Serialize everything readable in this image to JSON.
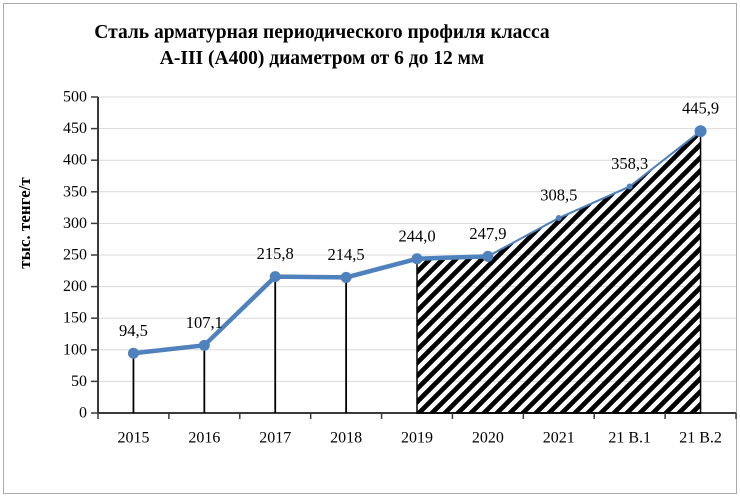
{
  "figure": {
    "title_line1": "Сталь арматурная периодического профиля класса",
    "title_line2": "А-III (А400) диаметром от 6 до 12 мм",
    "y_axis_title": "тыс. тенге/т"
  },
  "chart_data": {
    "type": "line",
    "title": "Сталь арматурная периодического профиля класса А-III (А400) диаметром от 6 до 12 мм",
    "ylabel": "тыс. тенге/т",
    "xlabel": "",
    "categories": [
      "2015",
      "2016",
      "2017",
      "2018",
      "2019",
      "2020",
      "2021",
      "21 В.1",
      "21 В.2"
    ],
    "values": [
      94.5,
      107.1,
      215.8,
      214.5,
      244.0,
      247.9,
      308.5,
      358.3,
      445.9
    ],
    "point_labels": [
      "94,5",
      "107,1",
      "215,8",
      "214,5",
      "244,0",
      "247,9",
      "308,5",
      "358,3",
      "445,9"
    ],
    "ylim": [
      0,
      500
    ],
    "ytick_step": 50,
    "grid": true,
    "legend_position": "none",
    "annotations": {
      "hatched_forecast_area_from_category": "2019",
      "hatch_start_index": 4,
      "solid_thick_line_end_index": 5,
      "drop_line_indices": [
        0,
        1,
        2,
        3
      ]
    },
    "colors": {
      "line": "#4f81bd",
      "hatch": "#000000",
      "grid": "#d9d9d9",
      "axis": "#3a3a3a",
      "text": "#000000"
    },
    "marker_radii": [
      5.5,
      5.5,
      5.5,
      5.5,
      5.5,
      5.5,
      3,
      3,
      6
    ]
  }
}
